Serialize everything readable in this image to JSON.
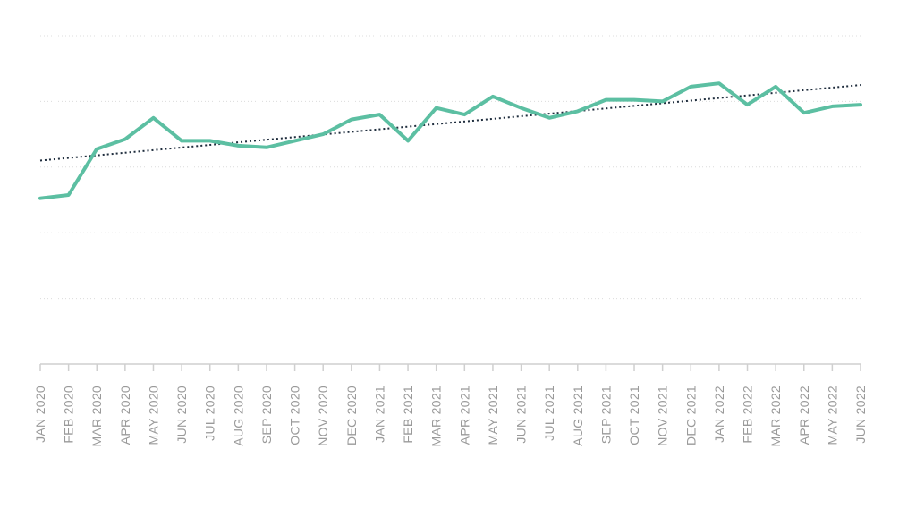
{
  "chart_data": {
    "type": "line",
    "categories": [
      "JAN 2020",
      "FEB 2020",
      "MAR 2020",
      "APR 2020",
      "MAY 2020",
      "JUN 2020",
      "JUL 2020",
      "AUG 2020",
      "SEP 2020",
      "OCT 2020",
      "NOV 2020",
      "DEC 2020",
      "JAN 2021",
      "FEB 2021",
      "MAR 2021",
      "APR 2021",
      "MAY 2021",
      "JUN 2021",
      "JUL 2021",
      "AUG 2021",
      "SEP 2021",
      "OCT 2021",
      "NOV 2021",
      "DEC 2021",
      "JAN 2022",
      "FEB 2022",
      "MAR 2022",
      "APR 2022",
      "MAY 2022",
      "JUN 2022"
    ],
    "series": [
      {
        "values": [
          50.5,
          51.5,
          65.5,
          68.5,
          75.0,
          68.0,
          68.0,
          66.5,
          66.0,
          68.0,
          70.0,
          74.5,
          76.0,
          68.0,
          78.0,
          76.0,
          81.5,
          78.0,
          75.0,
          77.0,
          80.5,
          80.5,
          80.0,
          84.5,
          85.5,
          79.0,
          84.5,
          76.5,
          78.5,
          79.0
        ],
        "color": "#5cbfa2"
      }
    ],
    "trendline": {
      "start": 62.0,
      "end": 85.0,
      "color": "#1f2d3d",
      "style": "dotted"
    },
    "ylim": [
      0,
      100
    ],
    "gridlines": [
      0,
      20,
      40,
      60,
      80,
      100
    ],
    "grid": true,
    "title": "",
    "xlabel": "",
    "ylabel": ""
  }
}
